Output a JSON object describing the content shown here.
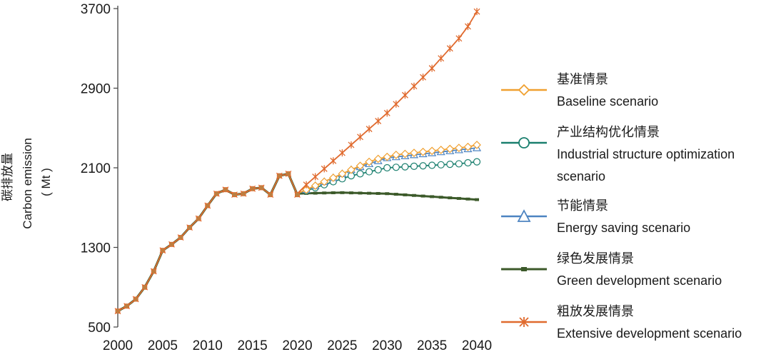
{
  "chart_data": {
    "type": "line",
    "ylabel_cn": "碳排放量",
    "ylabel_en": "Carbon emission",
    "ylabel_unit": "( Mt )",
    "ylim": [
      500,
      3700
    ],
    "yticks": [
      500,
      1300,
      2100,
      2900,
      3700
    ],
    "xlim": [
      2000,
      2040
    ],
    "xticks": [
      2000,
      2005,
      2010,
      2015,
      2020,
      2025,
      2030,
      2035,
      2040
    ],
    "history": {
      "x": [
        2000,
        2001,
        2002,
        2003,
        2004,
        2005,
        2006,
        2007,
        2008,
        2009,
        2010,
        2011,
        2012,
        2013,
        2014,
        2015,
        2016,
        2017,
        2018,
        2019,
        2020
      ],
      "y": [
        660,
        710,
        780,
        900,
        1060,
        1270,
        1330,
        1400,
        1500,
        1590,
        1720,
        1840,
        1880,
        1830,
        1840,
        1890,
        1900,
        1830,
        2020,
        2040,
        1830
      ]
    },
    "series": [
      {
        "name_cn": "基准情景",
        "name_en": "Baseline scenario",
        "color": "#f0a030",
        "marker": "diamond",
        "x": [
          2020,
          2021,
          2022,
          2023,
          2024,
          2025,
          2026,
          2027,
          2028,
          2029,
          2030,
          2031,
          2032,
          2033,
          2034,
          2035,
          2036,
          2037,
          2038,
          2039,
          2040
        ],
        "y": [
          1840,
          1880,
          1920,
          1960,
          2000,
          2040,
          2080,
          2120,
          2160,
          2190,
          2210,
          2230,
          2240,
          2250,
          2260,
          2270,
          2280,
          2290,
          2300,
          2310,
          2330
        ]
      },
      {
        "name_cn": "产业结构优化情景",
        "name_en": "Industrial structure optimization scenario",
        "color": "#1a7f6e",
        "marker": "circle",
        "x": [
          2020,
          2021,
          2022,
          2023,
          2024,
          2025,
          2026,
          2027,
          2028,
          2029,
          2030,
          2031,
          2032,
          2033,
          2034,
          2035,
          2036,
          2037,
          2038,
          2039,
          2040
        ],
        "y": [
          1840,
          1870,
          1900,
          1930,
          1960,
          1990,
          2020,
          2040,
          2060,
          2080,
          2100,
          2105,
          2110,
          2115,
          2120,
          2125,
          2130,
          2135,
          2140,
          2150,
          2160
        ]
      },
      {
        "name_cn": "节能情景",
        "name_en": "Energy saving scenario",
        "color": "#4d84c1",
        "marker": "triangle",
        "x": [
          2020,
          2021,
          2022,
          2023,
          2024,
          2025,
          2026,
          2027,
          2028,
          2029,
          2030,
          2031,
          2032,
          2033,
          2034,
          2035,
          2036,
          2037,
          2038,
          2039,
          2040
        ],
        "y": [
          1840,
          1880,
          1920,
          1960,
          2000,
          2040,
          2080,
          2110,
          2140,
          2170,
          2200,
          2210,
          2220,
          2230,
          2240,
          2250,
          2260,
          2270,
          2280,
          2290,
          2300
        ]
      },
      {
        "name_cn": "绿色发展情景",
        "name_en": "Green development scenario",
        "color": "#3c5a2a",
        "marker": "square",
        "x": [
          2020,
          2021,
          2022,
          2023,
          2024,
          2025,
          2026,
          2027,
          2028,
          2029,
          2030,
          2031,
          2032,
          2033,
          2034,
          2035,
          2036,
          2037,
          2038,
          2039,
          2040
        ],
        "y": [
          1840,
          1843,
          1845,
          1847,
          1849,
          1850,
          1848,
          1846,
          1844,
          1842,
          1840,
          1834,
          1828,
          1822,
          1816,
          1810,
          1804,
          1798,
          1792,
          1786,
          1780
        ]
      },
      {
        "name_cn": "粗放发展情景",
        "name_en": "Extensive development scenario",
        "color": "#e06a2e",
        "marker": "asterisk",
        "x": [
          2020,
          2021,
          2022,
          2023,
          2024,
          2025,
          2026,
          2027,
          2028,
          2029,
          2030,
          2031,
          2032,
          2033,
          2034,
          2035,
          2036,
          2037,
          2038,
          2039,
          2040
        ],
        "y": [
          1840,
          1930,
          2010,
          2090,
          2170,
          2250,
          2330,
          2410,
          2490,
          2570,
          2650,
          2740,
          2830,
          2920,
          3010,
          3100,
          3200,
          3300,
          3400,
          3520,
          3670
        ]
      }
    ]
  }
}
